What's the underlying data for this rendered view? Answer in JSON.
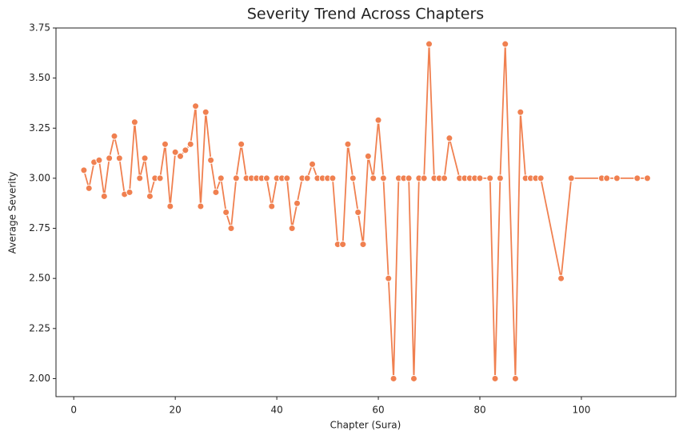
{
  "chart_data": {
    "type": "line",
    "title": "Severity Trend Across Chapters",
    "x_label": "Chapter (Sura)",
    "y_label": "Average Severity",
    "x": [
      2,
      3,
      4,
      5,
      6,
      7,
      8,
      9,
      10,
      11,
      12,
      13,
      14,
      15,
      16,
      17,
      18,
      19,
      20,
      21,
      22,
      23,
      24,
      25,
      26,
      27,
      28,
      29,
      30,
      31,
      32,
      33,
      34,
      35,
      36,
      37,
      38,
      39,
      40,
      41,
      42,
      43,
      44,
      45,
      46,
      47,
      48,
      49,
      50,
      51,
      52,
      53,
      54,
      55,
      56,
      57,
      58,
      59,
      60,
      61,
      62,
      63,
      64,
      65,
      66,
      67,
      68,
      69,
      70,
      71,
      72,
      73,
      74,
      76,
      77,
      78,
      79,
      80,
      82,
      83,
      84,
      85,
      87,
      88,
      89,
      90,
      91,
      92,
      96,
      98,
      104,
      105,
      107,
      111,
      113
    ],
    "series": [
      {
        "name": "Average Severity",
        "color": "#f08050",
        "values": [
          3.04,
          2.95,
          3.08,
          3.09,
          2.91,
          3.1,
          3.21,
          3.1,
          2.92,
          2.93,
          3.28,
          3.0,
          3.1,
          2.91,
          3.0,
          3.0,
          3.17,
          2.86,
          3.13,
          3.11,
          3.14,
          3.17,
          3.36,
          2.86,
          3.33,
          3.09,
          2.93,
          3.0,
          2.83,
          2.75,
          3.0,
          3.17,
          3.0,
          3.0,
          3.0,
          3.0,
          3.0,
          2.86,
          3.0,
          3.0,
          3.0,
          2.75,
          2.875,
          3.0,
          3.0,
          3.07,
          3.0,
          3.0,
          3.0,
          3.0,
          2.67,
          2.67,
          3.17,
          3.0,
          2.83,
          2.67,
          3.11,
          3.0,
          3.29,
          3.0,
          2.5,
          2.0,
          3.0,
          3.0,
          3.0,
          2.0,
          3.0,
          3.0,
          3.67,
          3.0,
          3.0,
          3.0,
          3.2,
          3.0,
          3.0,
          3.0,
          3.0,
          3.0,
          3.0,
          2.0,
          3.0,
          3.67,
          2.0,
          3.33,
          3.0,
          3.0,
          3.0,
          3.0,
          2.5,
          3.0,
          3.0,
          3.0,
          3.0,
          3.0,
          3.0
        ]
      }
    ],
    "xlim": [
      -3.5,
      118.6
    ],
    "ylim": [
      1.91,
      3.75
    ],
    "xticks": [
      0,
      20,
      40,
      60,
      80,
      100
    ],
    "yticks": [
      {
        "value": 2,
        "label": "2.00"
      },
      {
        "value": 2.25,
        "label": "2.25"
      },
      {
        "value": 2.5,
        "label": "2.50"
      },
      {
        "value": 2.75,
        "label": "2.75"
      },
      {
        "value": 3,
        "label": "3.00"
      },
      {
        "value": 3.25,
        "label": "3.25"
      },
      {
        "value": 3.5,
        "label": "3.50"
      },
      {
        "value": 3.75,
        "label": "3.75"
      }
    ]
  }
}
